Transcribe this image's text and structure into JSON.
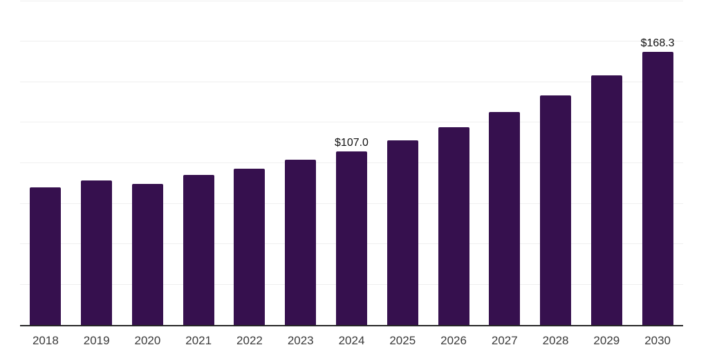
{
  "chart_data": {
    "type": "bar",
    "title": "",
    "xlabel": "",
    "ylabel": "",
    "categories": [
      "2018",
      "2019",
      "2020",
      "2021",
      "2022",
      "2023",
      "2024",
      "2025",
      "2026",
      "2027",
      "2028",
      "2029",
      "2030"
    ],
    "values": [
      84.8,
      89.1,
      87.0,
      92.5,
      96.3,
      101.9,
      107.0,
      113.8,
      121.9,
      131.3,
      141.5,
      153.9,
      168.3
    ],
    "bar_labels": [
      "",
      "",
      "",
      "",
      "",
      "",
      "$107.0",
      "",
      "",
      "",
      "",
      "",
      "$168.3"
    ],
    "value_prefix": "$",
    "ylim": [
      0,
      200
    ],
    "gridline_step": 25,
    "grid": true,
    "legend": false,
    "colors": {
      "bar": "#36104E",
      "axis_line": "#262626",
      "gridline": "#EFEFEF",
      "tick_label": "#3A3A3A",
      "value_label": "#111111",
      "background": "#FFFFFF"
    }
  }
}
